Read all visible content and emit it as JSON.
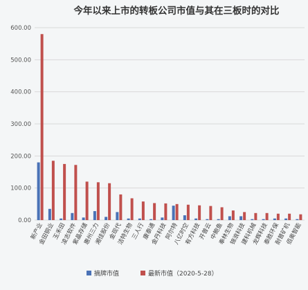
{
  "chart_data": {
    "type": "bar",
    "title": "今年以来上市的转板公司市值与其在三板时的对比",
    "ylim": [
      0,
      600
    ],
    "yticks": [
      0,
      100,
      200,
      300,
      400,
      500,
      600
    ],
    "ytick_labels": [
      "0.00",
      "100.00",
      "200.00",
      "300.00",
      "400.00",
      "500.00",
      "600.00"
    ],
    "categories": [
      "新产业",
      "金田铜业",
      "玉禾田",
      "凌志软件",
      "紫晶存储",
      "惠州三力",
      "湘佳股份",
      "金现代",
      "洁特生物",
      "三人行",
      "康泰通",
      "金丹科技",
      "阿尔特",
      "八亿时空",
      "有方科技",
      "开普云",
      "中鲍鱼",
      "奉林生物",
      "锦浪科技",
      "建科机械",
      "龙辉科技",
      "泰胜环保",
      "耐普矿机",
      "佰奥智能"
    ],
    "series": [
      {
        "name": "摘牌市值",
        "color": "#4a72b6",
        "values": [
          180,
          35,
          5,
          22,
          8,
          28,
          10,
          25,
          5,
          5,
          3,
          8,
          45,
          15,
          5,
          3,
          3,
          12,
          12,
          3,
          3,
          5,
          5,
          3
        ]
      },
      {
        "name": "最新市值（2020-5-28）",
        "color": "#c0504d",
        "values": [
          580,
          185,
          175,
          172,
          120,
          118,
          115,
          80,
          68,
          58,
          53,
          52,
          50,
          48,
          46,
          44,
          40,
          30,
          25,
          22,
          22,
          20,
          20,
          18
        ]
      }
    ]
  }
}
